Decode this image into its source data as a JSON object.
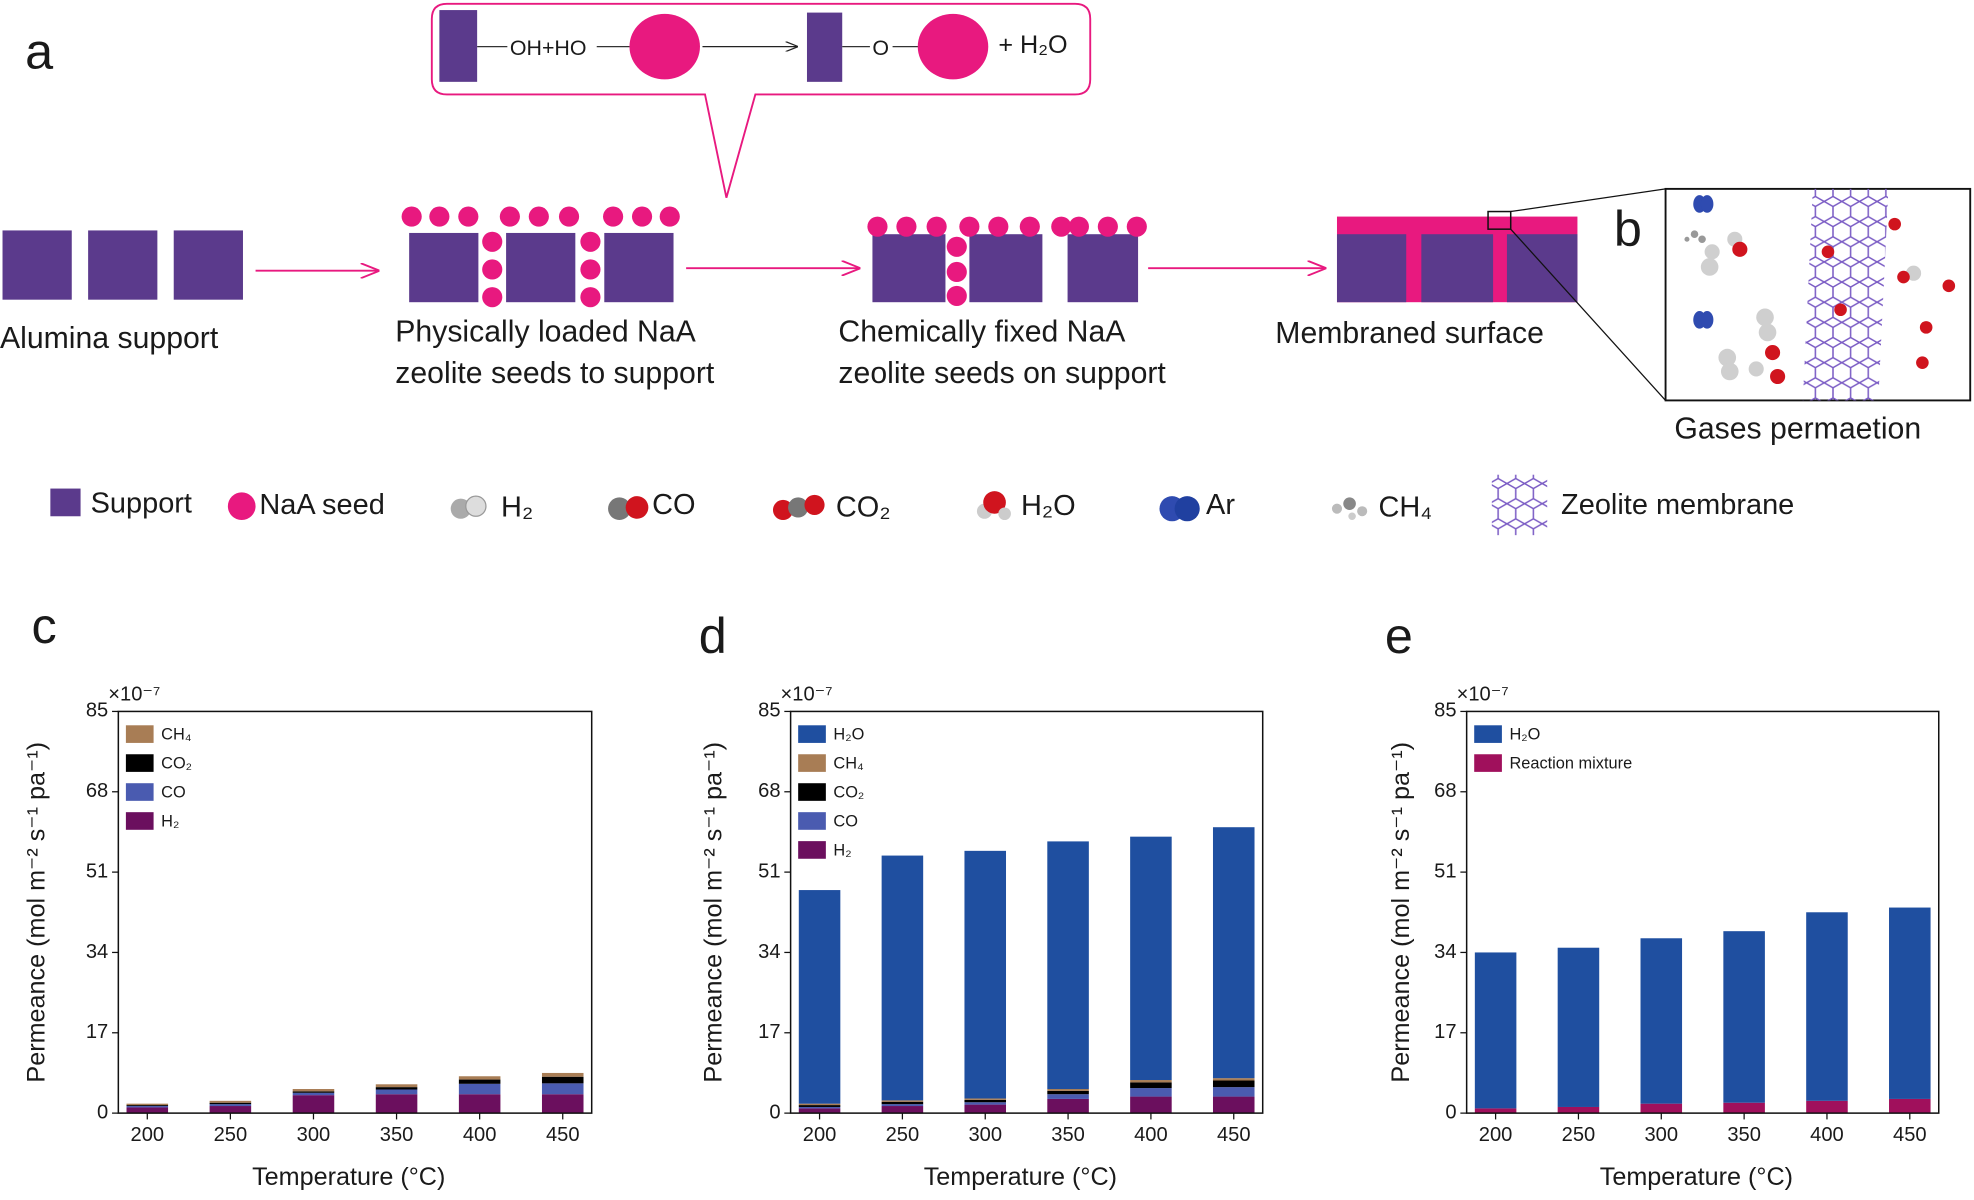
{
  "diagram": {
    "panel_a": "a",
    "panel_b": "b",
    "reaction": {
      "left": "OH+HO",
      "right": "O",
      "product": "+ H₂O"
    },
    "steps": [
      [
        "Alumina support"
      ],
      [
        "Physically loaded NaA",
        "zeolite seeds to support"
      ],
      [
        "Chemically fixed NaA",
        "zeolite seeds on support"
      ],
      [
        "Membraned surface"
      ]
    ],
    "inset_label": "Gases permaetion",
    "legend": [
      "Support",
      "NaA seed",
      "H₂",
      "CO",
      "CO₂",
      "H₂O",
      "Ar",
      "CH₄",
      "Zeolite membrane"
    ]
  },
  "chart_data": [
    {
      "type": "bar",
      "stacked": true,
      "panel": "c",
      "legend_position": "upper left",
      "multiplier": "×10⁻⁷",
      "xlabel": "Temperature (°C)",
      "ylabel": "Permeance (mol m⁻² s⁻¹ pa⁻¹)",
      "categories": [
        "200",
        "250",
        "300",
        "350",
        "400",
        "450"
      ],
      "ylim": [
        0,
        85
      ],
      "yticks": [
        0,
        17,
        34,
        51,
        68,
        85
      ],
      "series": [
        {
          "name": "H₂",
          "color": "#6b0f5e",
          "values": [
            1.2,
            1.5,
            3.8,
            4,
            4,
            4
          ]
        },
        {
          "name": "CO",
          "color": "#4a5bb0",
          "values": [
            0.3,
            0.4,
            0.5,
            1,
            2.2,
            2.3
          ]
        },
        {
          "name": "CO₂",
          "color": "#000000",
          "values": [
            0.2,
            0.3,
            0.3,
            0.5,
            0.9,
            1.4
          ]
        },
        {
          "name": "CH₄",
          "color": "#a87d55",
          "values": [
            0.3,
            0.4,
            0.5,
            0.6,
            0.7,
            0.8
          ]
        }
      ]
    },
    {
      "type": "bar",
      "stacked": true,
      "panel": "d",
      "legend_position": "upper left",
      "multiplier": "×10⁻⁷",
      "xlabel": "Temperature (°C)",
      "ylabel": "Permeance (mol m⁻² s⁻¹ pa⁻¹)",
      "categories": [
        "200",
        "250",
        "300",
        "350",
        "400",
        "450"
      ],
      "ylim": [
        0,
        85
      ],
      "yticks": [
        0,
        17,
        34,
        51,
        68,
        85
      ],
      "series": [
        {
          "name": "H₂",
          "color": "#6b0f5e",
          "values": [
            1,
            1.5,
            1.8,
            3,
            3.5,
            3.5
          ]
        },
        {
          "name": "CO",
          "color": "#4a5bb0",
          "values": [
            0.3,
            0.4,
            0.5,
            1,
            1.8,
            2
          ]
        },
        {
          "name": "CO₂",
          "color": "#000000",
          "values": [
            0.4,
            0.5,
            0.5,
            0.7,
            1.2,
            1.4
          ]
        },
        {
          "name": "CH₄",
          "color": "#a87d55",
          "values": [
            0.3,
            0.3,
            0.3,
            0.4,
            0.5,
            0.5
          ]
        },
        {
          "name": "H₂O",
          "color": "#1f4fa0",
          "values": [
            45.2,
            51.8,
            52.4,
            52.4,
            51.5,
            53.1
          ]
        }
      ]
    },
    {
      "type": "bar",
      "stacked": true,
      "panel": "e",
      "legend_position": "upper left",
      "multiplier": "×10⁻⁷",
      "xlabel": "Temperature (°C)",
      "ylabel": "Permeance (mol m⁻² s⁻¹ pa⁻¹)",
      "categories": [
        "200",
        "250",
        "300",
        "350",
        "400",
        "450"
      ],
      "ylim": [
        0,
        85
      ],
      "yticks": [
        0,
        17,
        34,
        51,
        68,
        85
      ],
      "series": [
        {
          "name": "Reaction mixture",
          "color": "#a0105c",
          "values": [
            1,
            1.3,
            2,
            2.2,
            2.6,
            3
          ]
        },
        {
          "name": "H₂O",
          "color": "#1f4fa0",
          "values": [
            33,
            33.7,
            35,
            36.3,
            39.9,
            40.5
          ]
        }
      ]
    }
  ]
}
